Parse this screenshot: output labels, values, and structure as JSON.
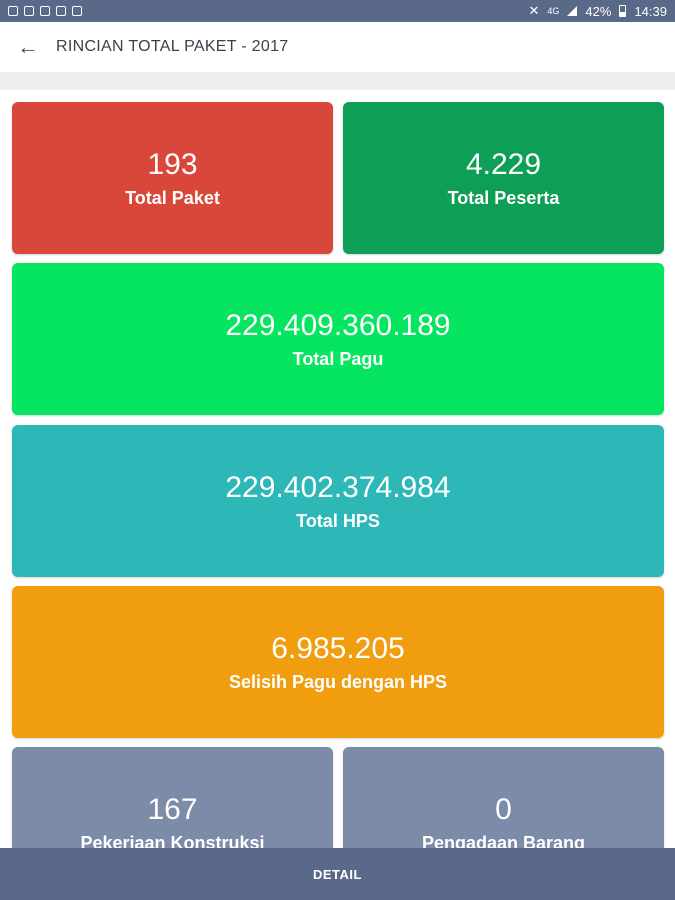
{
  "status_bar": {
    "battery": "42%",
    "time": "14:39",
    "network": "4G"
  },
  "app_bar": {
    "title": "RINCIAN TOTAL PAKET - 2017",
    "back_icon": "arrow-left-icon"
  },
  "cards": [
    {
      "value": "193",
      "label": "Total Paket",
      "color": "#d9473a"
    },
    {
      "value": "4.229",
      "label": "Total Peserta",
      "color": "#0e9f56"
    },
    {
      "value": "229.409.360.189",
      "label": "Total Pagu",
      "color": "#06e55f"
    },
    {
      "value": "229.402.374.984",
      "label": "Total HPS",
      "color": "#2eb7b7"
    },
    {
      "value": "6.985.205",
      "label": "Selisih Pagu dengan HPS",
      "color": "#f09d10"
    },
    {
      "value": "167",
      "label": "Pekerjaan Konstruksi",
      "color": "#7c8ba7"
    },
    {
      "value": "0",
      "label": "Pengadaan Barang",
      "color": "#7c8ba7"
    }
  ],
  "bottom_bar": {
    "detail_label": "DETAIL"
  }
}
